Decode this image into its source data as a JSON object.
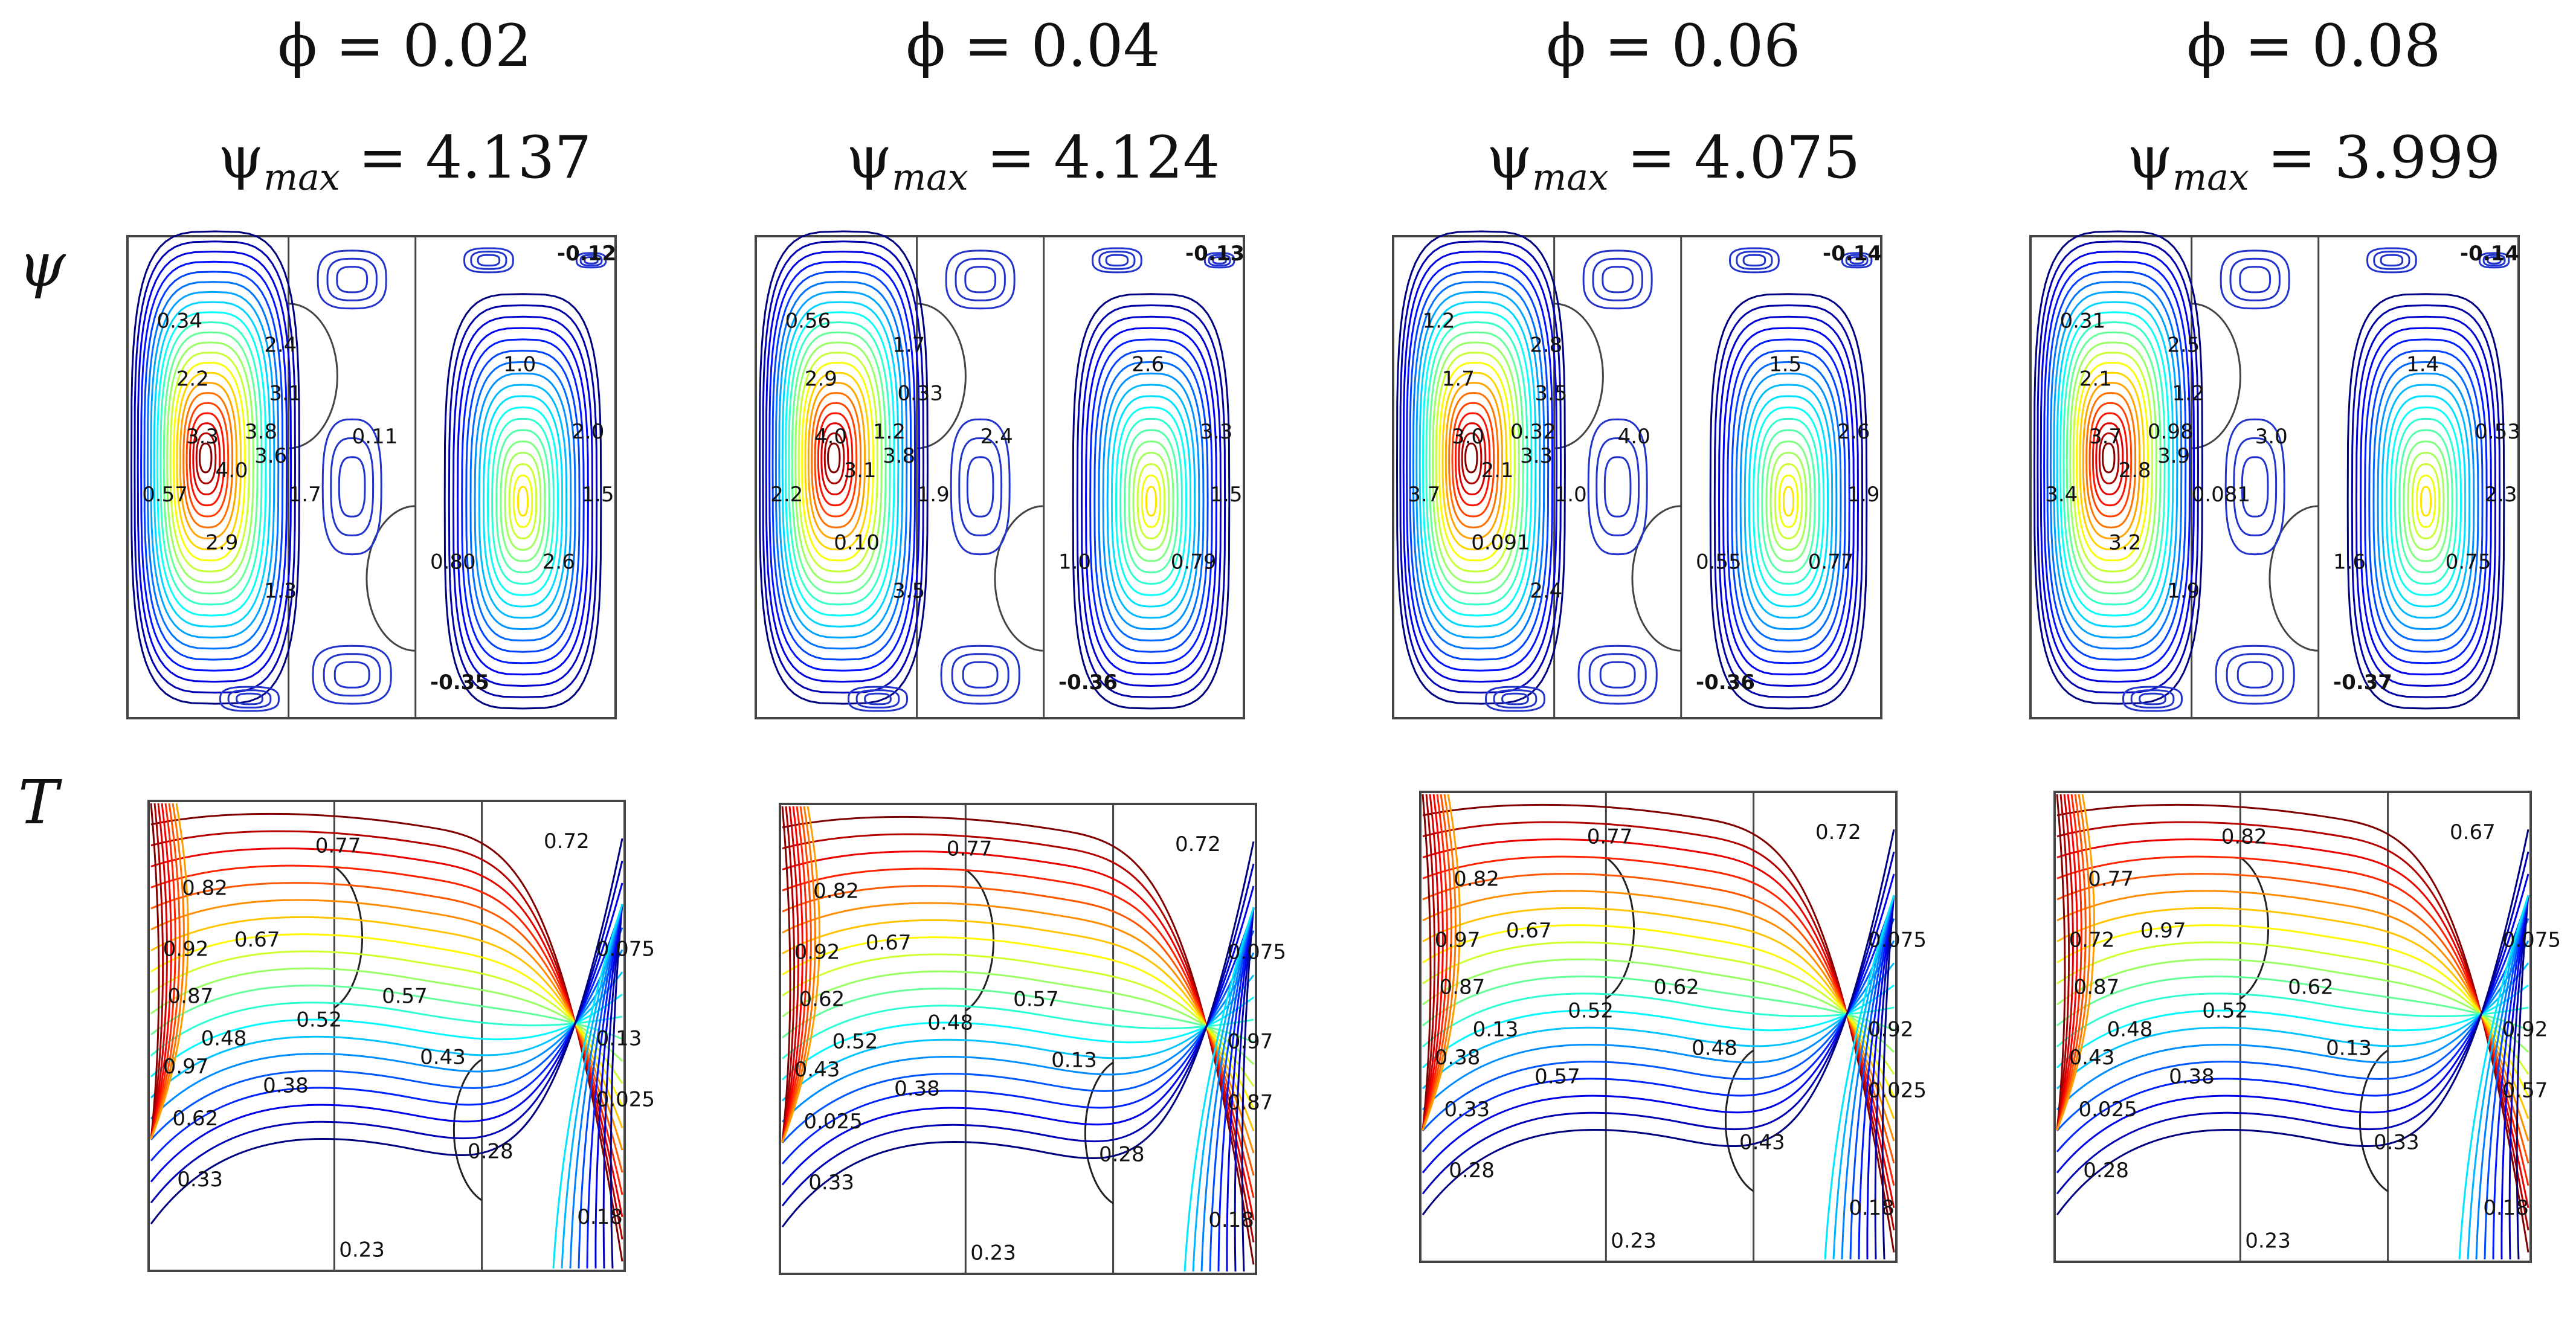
{
  "columns": [
    {
      "phi": "ϕ = 0.02",
      "psimax_value": "4.137",
      "stream_labels": [
        "-0.12",
        "0.34",
        "2.4",
        "2.2",
        "3.1",
        "3.8",
        "3.3",
        "0.11",
        "4.0",
        "3.6",
        "0.57",
        "1.7",
        "2.9",
        "1.3",
        "1.0",
        "2.0",
        "1.5",
        "0.80",
        "2.6",
        "-0.35"
      ],
      "temp_labels": [
        "0.77",
        "0.72",
        "0.82",
        "0.92",
        "0.67",
        "0.075",
        "0.87",
        "0.57",
        "0.52",
        "0.48",
        "0.43",
        "0.13",
        "0.97",
        "0.38",
        "0.025",
        "0.62",
        "0.28",
        "0.33",
        "0.18",
        "0.23"
      ]
    },
    {
      "phi": "ϕ = 0.04",
      "psimax_value": "4.124",
      "stream_labels": [
        "-0.13",
        "0.56",
        "1.7",
        "2.9",
        "0.33",
        "1.2",
        "4.0",
        "2.4",
        "3.1",
        "3.8",
        "2.2",
        "1.9",
        "0.10",
        "3.5",
        "2.6",
        "3.3",
        "1.5",
        "1.0",
        "0.79",
        "-0.36"
      ],
      "temp_labels": [
        "0.77",
        "0.72",
        "0.82",
        "0.92",
        "0.67",
        "0.075",
        "0.62",
        "0.57",
        "0.48",
        "0.52",
        "0.13",
        "0.97",
        "0.43",
        "0.38",
        "0.87",
        "0.025",
        "0.28",
        "0.33",
        "0.18",
        "0.23"
      ]
    },
    {
      "phi": "ϕ = 0.06",
      "psimax_value": "4.075",
      "stream_labels": [
        "-0.14",
        "1.2",
        "2.8",
        "1.7",
        "3.5",
        "0.32",
        "3.0",
        "4.0",
        "2.1",
        "3.3",
        "3.7",
        "1.0",
        "0.091",
        "2.4",
        "1.5",
        "2.6",
        "1.9",
        "0.55",
        "0.77",
        "-0.36"
      ],
      "temp_labels": [
        "0.77",
        "0.72",
        "0.82",
        "0.97",
        "0.67",
        "0.075",
        "0.87",
        "0.62",
        "0.52",
        "0.13",
        "0.48",
        "0.92",
        "0.38",
        "0.57",
        "0.025",
        "0.33",
        "0.43",
        "0.28",
        "0.18",
        "0.23"
      ]
    },
    {
      "phi": "ϕ = 0.08",
      "psimax_value": "3.999",
      "stream_labels": [
        "-0.14",
        "0.31",
        "2.5",
        "2.1",
        "1.2",
        "0.98",
        "3.7",
        "3.0",
        "2.8",
        "3.9",
        "3.4",
        "0.081",
        "3.2",
        "1.9",
        "1.4",
        "0.53",
        "2.3",
        "1.6",
        "0.75",
        "-0.37"
      ],
      "temp_labels": [
        "0.82",
        "0.67",
        "0.77",
        "0.72",
        "0.97",
        "0.075",
        "0.87",
        "0.62",
        "0.52",
        "0.48",
        "0.13",
        "0.92",
        "0.43",
        "0.38",
        "0.57",
        "0.025",
        "0.33",
        "0.28",
        "0.18",
        "0.23"
      ]
    }
  ],
  "psimax_symbol": "ψ",
  "psimax_sub": "max",
  "row_labels": {
    "stream": "ψ",
    "temperature": "T"
  }
}
